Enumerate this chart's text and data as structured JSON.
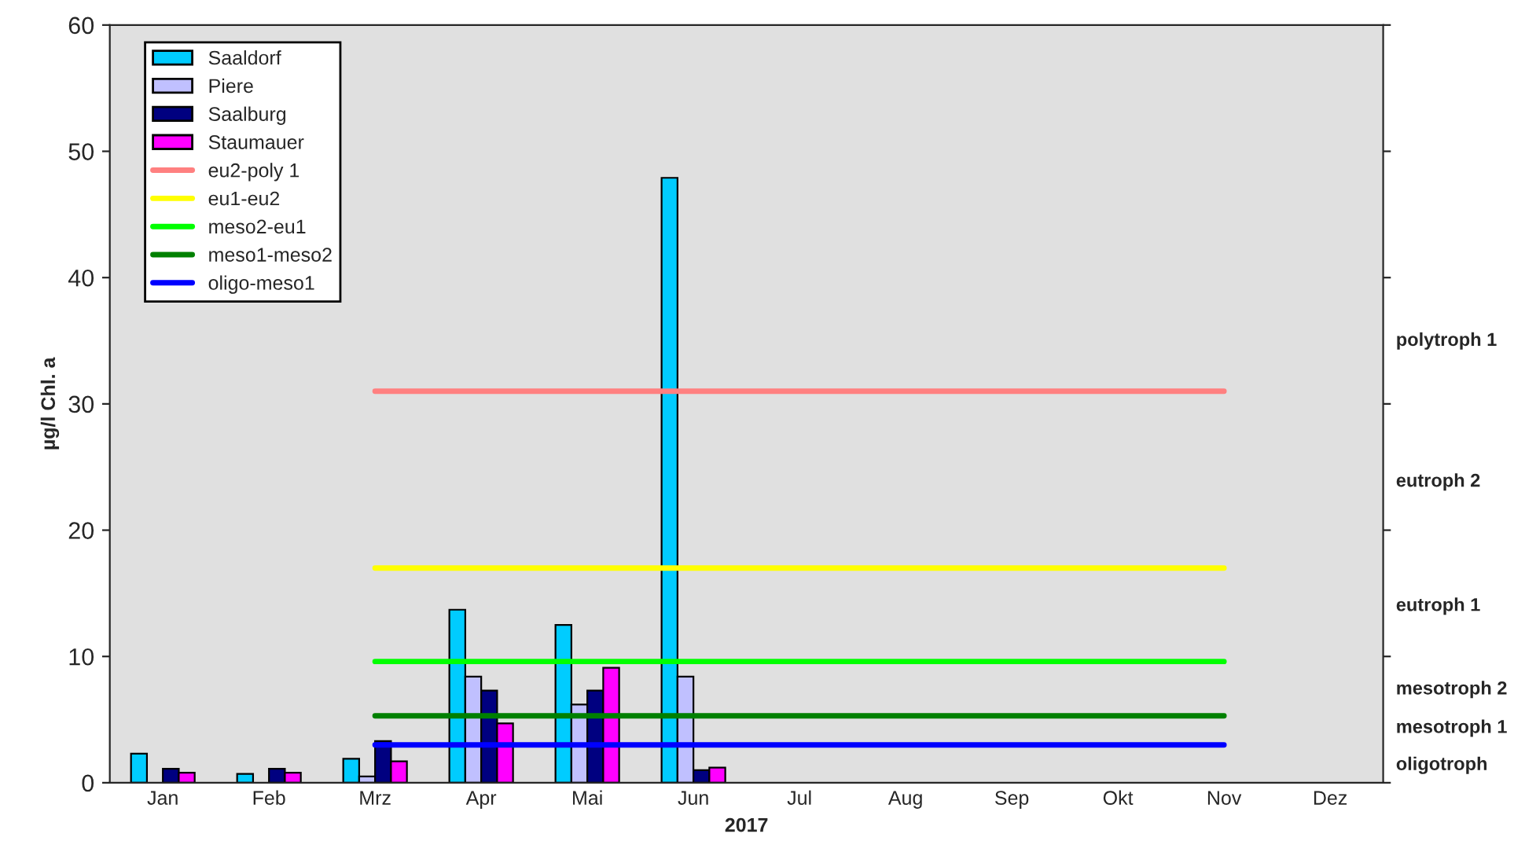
{
  "chart_data": {
    "type": "bar",
    "xlabel": "2017",
    "ylabel": "µg/l Chl. a",
    "categories": [
      "Jan",
      "Feb",
      "Mrz",
      "Apr",
      "Mai",
      "Jun",
      "Jul",
      "Aug",
      "Sep",
      "Okt",
      "Nov",
      "Dez"
    ],
    "series": [
      {
        "name": "Saaldorf",
        "color": "#00ccff",
        "values": [
          2.3,
          0.7,
          1.9,
          13.7,
          12.5,
          47.9,
          null,
          null,
          null,
          null,
          null,
          null
        ]
      },
      {
        "name": "Piere",
        "color": "#c0c0ff",
        "values": [
          null,
          null,
          0.5,
          8.4,
          6.2,
          8.4,
          null,
          null,
          null,
          null,
          null,
          null
        ]
      },
      {
        "name": "Saalburg",
        "color": "#000080",
        "values": [
          1.1,
          1.1,
          3.3,
          7.3,
          7.3,
          1.0,
          null,
          null,
          null,
          null,
          null,
          null
        ]
      },
      {
        "name": "Staumauer",
        "color": "#ff00ff",
        "values": [
          0.8,
          0.8,
          1.7,
          4.7,
          9.1,
          1.2,
          null,
          null,
          null,
          null,
          null,
          null
        ]
      },
      {
        "name": "eu2-poly 1",
        "type": "line",
        "color": "#ff8080",
        "values": [
          null,
          null,
          31,
          31,
          31,
          31,
          31,
          31,
          31,
          31,
          31,
          null
        ]
      },
      {
        "name": "eu1-eu2",
        "type": "line",
        "color": "#ffff00",
        "values": [
          null,
          null,
          17,
          17,
          17,
          17,
          17,
          17,
          17,
          17,
          17,
          null
        ]
      },
      {
        "name": "meso2-eu1",
        "type": "line",
        "color": "#00ff00",
        "values": [
          null,
          null,
          9.6,
          9.6,
          9.6,
          9.6,
          9.6,
          9.6,
          9.6,
          9.6,
          9.6,
          null
        ]
      },
      {
        "name": "meso1-meso2",
        "type": "line",
        "color": "#008000",
        "values": [
          null,
          null,
          5.3,
          5.3,
          5.3,
          5.3,
          5.3,
          5.3,
          5.3,
          5.3,
          5.3,
          null
        ]
      },
      {
        "name": "oligo-meso1",
        "type": "line",
        "color": "#0000ff",
        "values": [
          null,
          null,
          3.0,
          3.0,
          3.0,
          3.0,
          3.0,
          3.0,
          3.0,
          3.0,
          3.0,
          null
        ]
      }
    ],
    "ylim": [
      0,
      60
    ],
    "yticks": [
      0,
      10,
      20,
      30,
      40,
      50,
      60
    ],
    "annotations": [
      "polytroph 1",
      "eutroph 2",
      "eutroph 1",
      "mesotroph 2",
      "mesotroph 1",
      "oligotroph"
    ],
    "legend": "top left",
    "grid": false
  }
}
